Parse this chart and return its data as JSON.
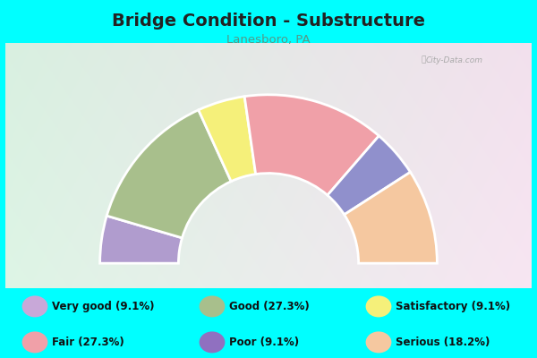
{
  "title": "Bridge Condition - Substructure",
  "subtitle": "Lanesboro, PA",
  "bg_color": "#00FFFF",
  "chart_box_color": "#e8f5ee",
  "segments_l_to_r": [
    {
      "label": "Poor",
      "pct": 9.1,
      "color": "#b09cce"
    },
    {
      "label": "Good",
      "pct": 27.3,
      "color": "#a8bf8c"
    },
    {
      "label": "Satisfactory",
      "pct": 9.1,
      "color": "#f5f07a"
    },
    {
      "label": "Fair",
      "pct": 27.3,
      "color": "#f0a0a8"
    },
    {
      "label": "Very good",
      "pct": 9.1,
      "color": "#9090cc"
    },
    {
      "label": "Serious",
      "pct": 18.2,
      "color": "#f5c8a0"
    }
  ],
  "legend": [
    {
      "label": "Very good (9.1%)",
      "color": "#c8a8d8"
    },
    {
      "label": "Good (27.3%)",
      "color": "#a8bf8c"
    },
    {
      "label": "Satisfactory (9.1%)",
      "color": "#f5f07a"
    },
    {
      "label": "Fair (27.3%)",
      "color": "#f0a0a8"
    },
    {
      "label": "Poor (9.1%)",
      "color": "#9070c0"
    },
    {
      "label": "Serious (18.2%)",
      "color": "#f5c8a0"
    }
  ],
  "title_color": "#222222",
  "subtitle_color": "#559988",
  "watermark_text": "City-Data.com",
  "watermark_color": "#aaaaaa"
}
